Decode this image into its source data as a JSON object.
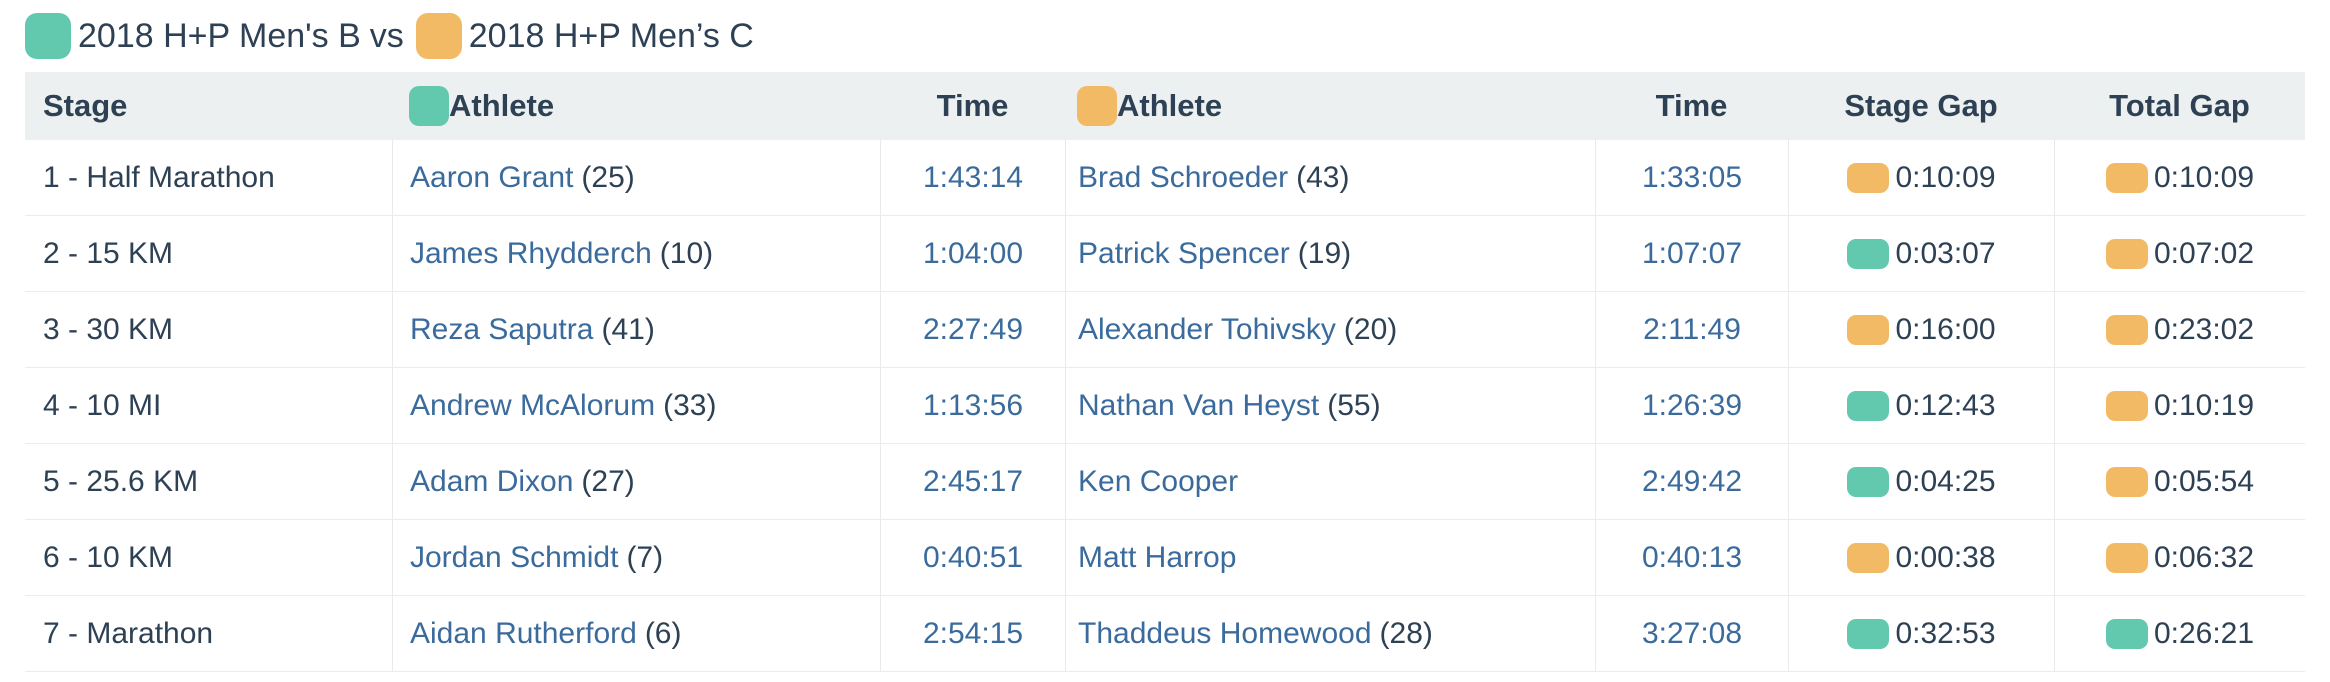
{
  "colors": {
    "team-b": "#63c9ae",
    "team-c": "#f3ba66",
    "text-dark": "#2e4154",
    "link-blue": "#3a6b9c",
    "header-bg": "#edf0f1",
    "border": "#e7eaec"
  },
  "legend": {
    "team_b_label": "2018 H+P Men's B",
    "separator": "vs",
    "team_c_label": "2018 H+P Men’s C"
  },
  "table": {
    "headers": {
      "stage": "Stage",
      "athlete_b": "Athlete",
      "time_b": "Time",
      "athlete_c": "Athlete",
      "time_c": "Time",
      "stage_gap": "Stage Gap",
      "total_gap": "Total Gap"
    },
    "rows": [
      {
        "stage": "1 - Half Marathon",
        "athlete_b": "Aaron Grant",
        "bib_b": "(25)",
        "time_b": "1:43:14",
        "athlete_c": "Brad Schroeder",
        "bib_c": "(43)",
        "time_c": "1:33:05",
        "stage_gap": {
          "team": "C",
          "value": "0:10:09"
        },
        "total_gap": {
          "team": "C",
          "value": "0:10:09"
        }
      },
      {
        "stage": "2 - 15 KM",
        "athlete_b": "James Rhydderch",
        "bib_b": "(10)",
        "time_b": "1:04:00",
        "athlete_c": "Patrick Spencer",
        "bib_c": "(19)",
        "time_c": "1:07:07",
        "stage_gap": {
          "team": "B",
          "value": "0:03:07"
        },
        "total_gap": {
          "team": "C",
          "value": "0:07:02"
        }
      },
      {
        "stage": "3 - 30 KM",
        "athlete_b": "Reza Saputra",
        "bib_b": "(41)",
        "time_b": "2:27:49",
        "athlete_c": "Alexander Tohivsky",
        "bib_c": "(20)",
        "time_c": "2:11:49",
        "stage_gap": {
          "team": "C",
          "value": "0:16:00"
        },
        "total_gap": {
          "team": "C",
          "value": "0:23:02"
        }
      },
      {
        "stage": "4 - 10 MI",
        "athlete_b": "Andrew McAlorum",
        "bib_b": "(33)",
        "time_b": "1:13:56",
        "athlete_c": "Nathan Van Heyst",
        "bib_c": "(55)",
        "time_c": "1:26:39",
        "stage_gap": {
          "team": "B",
          "value": "0:12:43"
        },
        "total_gap": {
          "team": "C",
          "value": "0:10:19"
        }
      },
      {
        "stage": "5 - 25.6 KM",
        "athlete_b": "Adam Dixon",
        "bib_b": "(27)",
        "time_b": "2:45:17",
        "athlete_c": "Ken Cooper",
        "bib_c": "",
        "time_c": "2:49:42",
        "stage_gap": {
          "team": "B",
          "value": "0:04:25"
        },
        "total_gap": {
          "team": "C",
          "value": "0:05:54"
        }
      },
      {
        "stage": "6 - 10 KM",
        "athlete_b": "Jordan Schmidt",
        "bib_b": "(7)",
        "time_b": "0:40:51",
        "athlete_c": "Matt Harrop",
        "bib_c": "",
        "time_c": "0:40:13",
        "stage_gap": {
          "team": "C",
          "value": "0:00:38"
        },
        "total_gap": {
          "team": "C",
          "value": "0:06:32"
        }
      },
      {
        "stage": "7 - Marathon",
        "athlete_b": "Aidan Rutherford",
        "bib_b": "(6)",
        "time_b": "2:54:15",
        "athlete_c": "Thaddeus Homewood",
        "bib_c": "(28)",
        "time_c": "3:27:08",
        "stage_gap": {
          "team": "B",
          "value": "0:32:53"
        },
        "total_gap": {
          "team": "B",
          "value": "0:26:21"
        }
      }
    ]
  }
}
